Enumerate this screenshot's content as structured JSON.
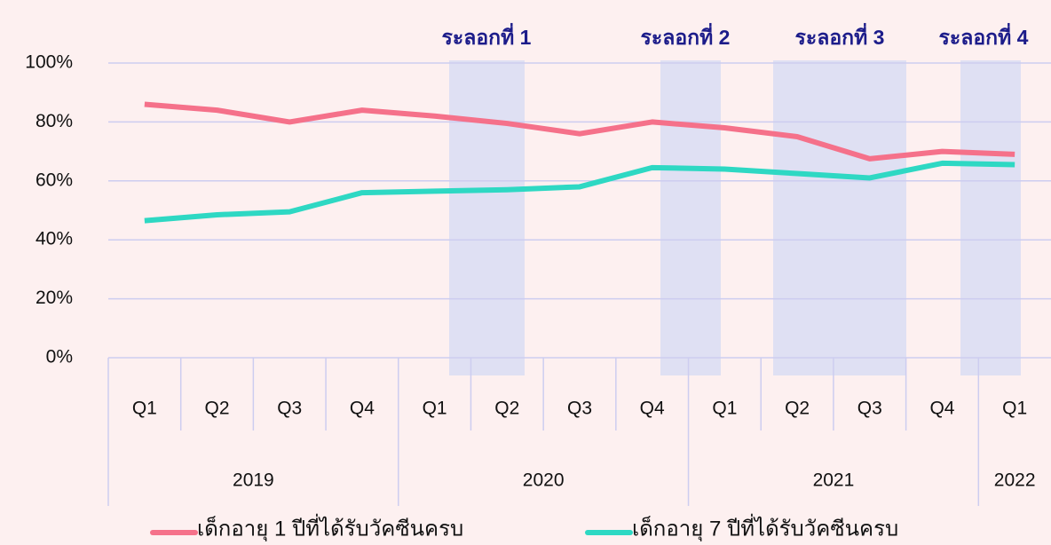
{
  "chart_data": {
    "type": "line",
    "categories": [
      "Q1",
      "Q2",
      "Q3",
      "Q4",
      "Q1",
      "Q2",
      "Q3",
      "Q4",
      "Q1",
      "Q2",
      "Q3",
      "Q4",
      "Q1"
    ],
    "x_groups": [
      "2019",
      "2020",
      "2021",
      "2022"
    ],
    "series": [
      {
        "name": "เด็กอายุ 1 ปีที่ได้รับวัคซีนครบ",
        "color": "#f5718a",
        "values": [
          86,
          84,
          80,
          84,
          82,
          79.5,
          76,
          80,
          78,
          75,
          67.5,
          70,
          69
        ]
      },
      {
        "name": "เด็กอายุ 7 ปีที่ได้รับวัคซีนครบ",
        "color": "#2ed8c3",
        "values": [
          46.5,
          48.5,
          49.5,
          56,
          56.5,
          57,
          58,
          64.5,
          64,
          62.5,
          61,
          66,
          65.5
        ]
      }
    ],
    "annotations": [
      "ระลอกที่ 1",
      "ระลอกที่ 2",
      "ระลอกที่ 3",
      "ระลอกที่ 4"
    ],
    "ylim": [
      0,
      100
    ],
    "yticks": [
      {
        "value": 0,
        "label": "0%"
      },
      {
        "value": 20,
        "label": "20%"
      },
      {
        "value": 40,
        "label": "40%"
      },
      {
        "value": 60,
        "label": "60%"
      },
      {
        "value": 80,
        "label": "80%"
      },
      {
        "value": 100,
        "label": "100%"
      }
    ],
    "grid": true
  }
}
